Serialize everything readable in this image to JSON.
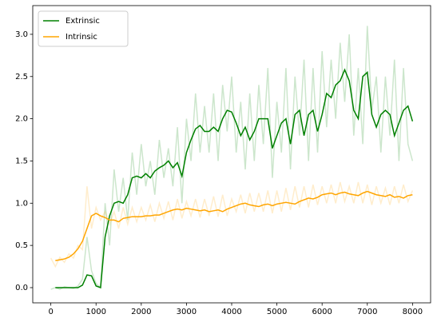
{
  "chart_data": {
    "type": "line",
    "x": [
      0,
      100,
      200,
      300,
      400,
      500,
      600,
      700,
      800,
      900,
      1000,
      1100,
      1200,
      1300,
      1400,
      1500,
      1600,
      1700,
      1800,
      1900,
      2000,
      2100,
      2200,
      2300,
      2400,
      2500,
      2600,
      2700,
      2800,
      2900,
      3000,
      3100,
      3200,
      3300,
      3400,
      3500,
      3600,
      3700,
      3800,
      3900,
      4000,
      4100,
      4200,
      4300,
      4400,
      4500,
      4600,
      4700,
      4800,
      4900,
      5000,
      5100,
      5200,
      5300,
      5400,
      5500,
      5600,
      5700,
      5800,
      5900,
      6000,
      6100,
      6200,
      6300,
      6400,
      6500,
      6600,
      6700,
      6800,
      6900,
      7000,
      7100,
      7200,
      7300,
      7400,
      7500,
      7600,
      7700,
      7800,
      7900,
      8000
    ],
    "series": [
      {
        "name": "Extrinsic",
        "color": "#008000",
        "values": [
          null,
          0.0,
          0.0,
          0.0,
          0.0,
          0.0,
          0.0,
          0.03,
          0.15,
          0.14,
          0.02,
          0.0,
          0.6,
          0.85,
          1.0,
          1.02,
          1.0,
          1.1,
          1.3,
          1.32,
          1.3,
          1.35,
          1.3,
          1.38,
          1.42,
          1.45,
          1.5,
          1.42,
          1.48,
          1.32,
          1.6,
          1.75,
          1.88,
          1.92,
          1.85,
          1.85,
          1.9,
          1.85,
          2.0,
          2.1,
          2.08,
          1.95,
          1.8,
          1.9,
          1.75,
          1.85,
          2.0,
          2.0,
          2.0,
          1.65,
          1.8,
          1.95,
          2.0,
          1.7,
          2.05,
          2.1,
          1.8,
          2.05,
          2.1,
          1.85,
          2.05,
          2.3,
          2.25,
          2.4,
          2.45,
          2.58,
          2.45,
          2.1,
          2.0,
          2.5,
          2.55,
          2.05,
          1.9,
          2.05,
          2.1,
          2.05,
          1.8,
          1.95,
          2.1,
          2.15,
          1.97
        ],
        "raw_values": [
          -0.02,
          0.0,
          -0.02,
          0.01,
          0.0,
          -0.01,
          0.02,
          0.1,
          0.6,
          0.2,
          0.05,
          0.0,
          1.0,
          0.5,
          1.4,
          0.9,
          1.3,
          0.8,
          1.6,
          1.1,
          1.7,
          1.2,
          1.5,
          1.1,
          1.75,
          1.3,
          1.65,
          1.2,
          1.9,
          1.0,
          2.0,
          1.5,
          2.3,
          1.6,
          2.15,
          1.6,
          2.3,
          1.5,
          2.4,
          1.85,
          2.5,
          1.6,
          2.2,
          1.4,
          2.3,
          1.5,
          2.4,
          1.7,
          2.6,
          1.3,
          2.2,
          1.6,
          2.6,
          1.4,
          2.5,
          1.8,
          2.7,
          1.5,
          2.6,
          1.6,
          2.8,
          1.9,
          2.7,
          2.0,
          2.9,
          2.2,
          3.0,
          1.8,
          2.6,
          1.7,
          3.1,
          2.1,
          2.5,
          1.6,
          2.5,
          1.8,
          2.7,
          1.5,
          2.6,
          1.7,
          1.5
        ]
      },
      {
        "name": "Intrinsic",
        "color": "#ffa500",
        "values": [
          null,
          0.32,
          0.33,
          0.34,
          0.36,
          0.4,
          0.46,
          0.55,
          0.7,
          0.85,
          0.88,
          0.85,
          0.83,
          0.8,
          0.8,
          0.78,
          0.82,
          0.83,
          0.84,
          0.84,
          0.84,
          0.85,
          0.85,
          0.86,
          0.86,
          0.88,
          0.9,
          0.92,
          0.93,
          0.92,
          0.94,
          0.93,
          0.92,
          0.91,
          0.92,
          0.9,
          0.91,
          0.92,
          0.9,
          0.93,
          0.95,
          0.97,
          0.99,
          1.0,
          0.98,
          0.97,
          0.96,
          0.98,
          0.99,
          0.97,
          0.99,
          1.0,
          1.01,
          1.0,
          0.99,
          1.02,
          1.04,
          1.06,
          1.05,
          1.07,
          1.1,
          1.11,
          1.12,
          1.1,
          1.12,
          1.13,
          1.11,
          1.1,
          1.09,
          1.12,
          1.14,
          1.12,
          1.1,
          1.09,
          1.08,
          1.1,
          1.07,
          1.08,
          1.06,
          1.09,
          1.1
        ],
        "raw_values": [
          0.35,
          0.25,
          0.36,
          0.3,
          0.4,
          0.35,
          0.5,
          0.45,
          1.2,
          0.7,
          0.95,
          0.8,
          0.9,
          0.75,
          0.9,
          0.7,
          0.95,
          0.75,
          0.95,
          0.78,
          0.95,
          0.8,
          0.98,
          0.78,
          1.0,
          0.82,
          1.02,
          0.8,
          1.05,
          0.82,
          1.02,
          0.85,
          1.05,
          0.83,
          1.05,
          0.85,
          1.08,
          0.84,
          1.1,
          0.85,
          1.05,
          0.9,
          1.1,
          0.88,
          1.12,
          0.9,
          1.12,
          0.9,
          1.15,
          0.88,
          1.15,
          0.9,
          1.18,
          0.92,
          1.2,
          0.95,
          1.2,
          0.95,
          1.22,
          0.98,
          1.2,
          1.0,
          1.22,
          1.0,
          1.25,
          1.02,
          1.2,
          1.0,
          1.25,
          1.0,
          1.22,
          0.98,
          1.2,
          1.0,
          1.18,
          0.98,
          1.2,
          1.0,
          1.22,
          1.02,
          1.15
        ]
      }
    ],
    "xlim": [
      -400,
      8400
    ],
    "xticks": [
      0,
      1000,
      2000,
      3000,
      4000,
      5000,
      6000,
      7000,
      8000
    ],
    "ylim": [
      -0.18,
      3.34
    ],
    "yticks": [
      {
        "value": 0,
        "label": "0.0"
      },
      0.5,
      {
        "value": 1,
        "label": "1.0"
      },
      1.5,
      {
        "value": 2,
        "label": "2.0"
      },
      2.5,
      {
        "value": 3,
        "label": "3.0"
      }
    ],
    "raw_opacity": 0.2,
    "legend": "upper left"
  }
}
